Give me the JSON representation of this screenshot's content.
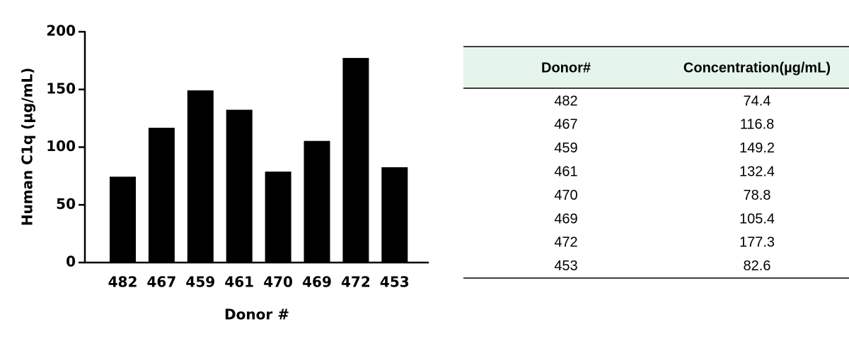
{
  "chart_data": {
    "type": "bar",
    "x_label": "Donor #",
    "y_label": "Human C1q (µg/mL)",
    "categories": [
      "482",
      "467",
      "459",
      "461",
      "470",
      "469",
      "472",
      "453"
    ],
    "values": [
      74.4,
      116.8,
      149.2,
      132.4,
      78.8,
      105.4,
      177.3,
      82.6
    ],
    "color": "#000000",
    "ylim": [
      0,
      200
    ],
    "yticks": [
      0,
      50,
      100,
      150,
      200
    ],
    "grid": false
  },
  "table": {
    "header": [
      "Donor#",
      "Concentration(µg/mL)"
    ]
  }
}
